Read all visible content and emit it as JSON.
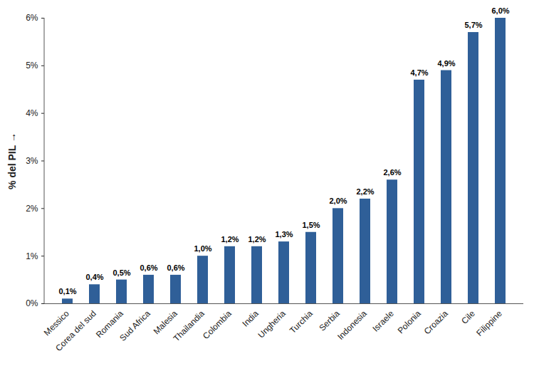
{
  "chart_data": {
    "type": "bar",
    "y_label": "% del PIL",
    "categories": [
      "Messico",
      "Corea del sud",
      "Romania",
      "Sud Africa",
      "Malesia",
      "Thailandia",
      "Colombia",
      "India",
      "Ungheria",
      "Turchia",
      "Serbia",
      "Indonesia",
      "Israele",
      "Polonia",
      "Croazia",
      "Cile",
      "Filippine"
    ],
    "values": [
      0.1,
      0.4,
      0.5,
      0.6,
      0.6,
      1.0,
      1.2,
      1.2,
      1.3,
      1.5,
      2.0,
      2.2,
      2.6,
      4.7,
      4.9,
      5.7,
      6.0
    ],
    "value_labels": [
      "0,1%",
      "0,4%",
      "0,5%",
      "0,6%",
      "0,6%",
      "1,0%",
      "1,2%",
      "1,2%",
      "1,3%",
      "1,5%",
      "2,0%",
      "2,2%",
      "2,6%",
      "4,7%",
      "4,9%",
      "5,7%",
      "6,0%"
    ],
    "color": "#2f5f98",
    "ylim": [
      0,
      6
    ],
    "yticks": [
      {
        "value": 0,
        "label": "0%"
      },
      {
        "value": 1,
        "label": "1%"
      },
      {
        "value": 2,
        "label": "2%"
      },
      {
        "value": 3,
        "label": "3%"
      },
      {
        "value": 4,
        "label": "4%"
      },
      {
        "value": 5,
        "label": "5%"
      },
      {
        "value": 6,
        "label": "6%"
      }
    ],
    "grid": false,
    "data_labels": true
  }
}
